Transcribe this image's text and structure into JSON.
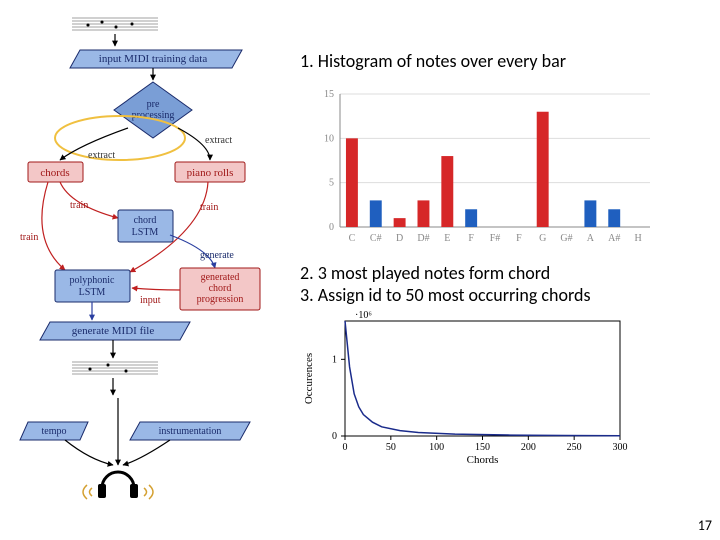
{
  "page_number": "17",
  "right": {
    "heading1": "1. Histogram of notes over every bar",
    "heading2": "2. 3 most played notes form chord",
    "heading3": "3. Assign id to 50 most occurring chords"
  },
  "flowchart": {
    "colors": {
      "bg": "#ffffff",
      "parallelogram_fill": "#9ab8e6",
      "parallelogram_stroke": "#1a2b6b",
      "diamond_fill": "#7a9ed6",
      "diamond_stroke": "#1a2b6b",
      "red_box_fill": "#f3c7c7",
      "red_box_stroke": "#a01818",
      "blue_box_fill": "#9ab8e6",
      "blue_box_stroke": "#1a2b6b",
      "arrow_black": "#000000",
      "arrow_red": "#c02020",
      "arrow_blue": "#2a3fa0",
      "circle_stroke": "#f0c040",
      "text": "#333333",
      "red_text": "#a01818",
      "blue_text": "#1a2b6b"
    },
    "nodes": {
      "input": "input MIDI training data",
      "preproc": "pre\nprocessing",
      "chords": "chords",
      "pianorolls": "piano rolls",
      "chordlstm": "chord\nLSTM",
      "polylstm": "polyphonic\nLSTM",
      "gencp": "generated\nchord\nprogression",
      "genmidi": "generate MIDI file",
      "tempo": "tempo",
      "instr": "instrumentation"
    },
    "edge_labels": {
      "extract_l": "extract",
      "extract_r": "extract",
      "train_l": "train",
      "train_r": "train",
      "generate": "generate",
      "input_lbl": "input"
    }
  },
  "histogram": {
    "type": "bar",
    "categories": [
      "C",
      "C#",
      "D",
      "D#",
      "E",
      "F",
      "F#",
      "F",
      "G",
      "G#",
      "A",
      "A#",
      "H"
    ],
    "values": [
      10,
      3,
      1,
      3,
      8,
      2,
      0,
      0,
      13,
      0,
      3,
      2,
      0
    ],
    "bar_colors": [
      "#d62728",
      "#1f5fbf",
      "#d62728",
      "#d62728",
      "#d62728",
      "#1f5fbf",
      "#d62728",
      "#d62728",
      "#d62728",
      "#d62728",
      "#1f5fbf",
      "#1f5fbf",
      "#d62728"
    ],
    "ylim": [
      0,
      15
    ],
    "ytick_step": 5,
    "yticks": [
      "0",
      "5",
      "10",
      "15"
    ],
    "grid_color": "#dddddd",
    "axis_color": "#888888",
    "label_color": "#888888",
    "label_fontsize": 10,
    "background_color": "#ffffff",
    "bar_width": 0.5
  },
  "occ_chart": {
    "type": "line",
    "xlabel": "Chords",
    "ylabel": "Occurences",
    "title_top": "·10⁶",
    "xlim": [
      0,
      300
    ],
    "xtick_step": 50,
    "xticks": [
      "0",
      "50",
      "100",
      "150",
      "200",
      "250",
      "300"
    ],
    "ylim": [
      0,
      1.5
    ],
    "yticks": [
      "0",
      "1"
    ],
    "line_color": "#1a2b8b",
    "line_width": 1.5,
    "axis_color": "#000000",
    "label_color": "#000000",
    "label_fontsize": 10,
    "data": [
      [
        0,
        1.5
      ],
      [
        5,
        0.9
      ],
      [
        10,
        0.55
      ],
      [
        15,
        0.38
      ],
      [
        20,
        0.28
      ],
      [
        30,
        0.18
      ],
      [
        40,
        0.12
      ],
      [
        60,
        0.07
      ],
      [
        80,
        0.045
      ],
      [
        120,
        0.025
      ],
      [
        180,
        0.012
      ],
      [
        240,
        0.007
      ],
      [
        300,
        0.004
      ]
    ]
  }
}
